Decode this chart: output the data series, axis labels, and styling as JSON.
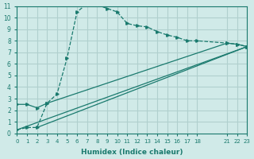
{
  "xlabel": "Humidex (Indice chaleur)",
  "ylabel": "",
  "bg_color": "#d0eae8",
  "grid_color": "#b0d0ce",
  "line_color": "#1a7a6e",
  "xlim": [
    0,
    23
  ],
  "ylim": [
    0,
    11
  ],
  "xticks": [
    0,
    1,
    2,
    3,
    4,
    5,
    6,
    7,
    8,
    9,
    10,
    11,
    12,
    13,
    14,
    15,
    16,
    17,
    18,
    21,
    22,
    23
  ],
  "yticks": [
    0,
    1,
    2,
    3,
    4,
    5,
    6,
    7,
    8,
    9,
    10,
    11
  ],
  "line1_x": [
    0,
    1,
    2,
    3,
    4,
    5,
    6,
    7,
    8,
    9,
    10,
    11,
    12,
    13,
    14,
    15,
    16,
    17,
    18,
    21,
    22,
    23
  ],
  "line1_y": [
    0.3,
    0.5,
    0.5,
    2.6,
    3.4,
    6.5,
    10.5,
    11.2,
    11.1,
    10.8,
    10.5,
    9.5,
    9.3,
    9.2,
    8.8,
    8.5,
    8.3,
    8.0,
    8.0,
    7.8,
    7.7,
    7.5
  ],
  "line2_x": [
    0,
    1,
    2,
    3,
    21,
    22,
    23
  ],
  "line2_y": [
    2.5,
    2.5,
    2.2,
    2.6,
    7.8,
    7.7,
    7.5
  ],
  "line3_x": [
    0,
    23
  ],
  "line3_y": [
    0.3,
    7.5
  ],
  "line4_x": [
    2,
    23
  ],
  "line4_y": [
    0.5,
    7.5
  ]
}
